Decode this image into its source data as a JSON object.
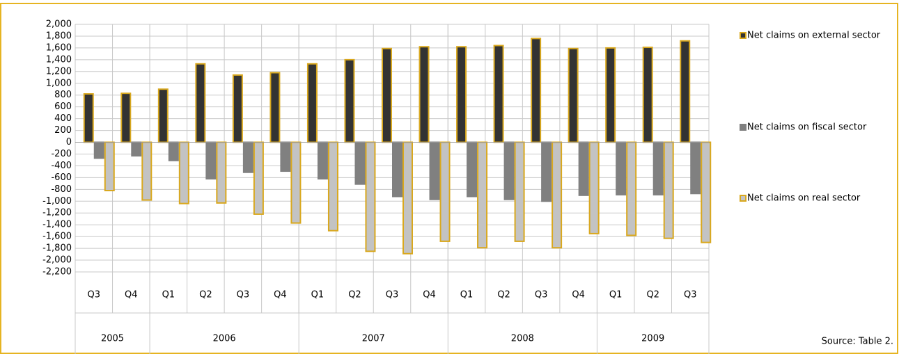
{
  "chart_data": {
    "type": "bar",
    "groups": [
      {
        "name": "2005",
        "categories": [
          "Q3",
          "Q4"
        ]
      },
      {
        "name": "2006",
        "categories": [
          "Q1",
          "Q2",
          "Q3",
          "Q4"
        ]
      },
      {
        "name": "2007",
        "categories": [
          "Q1",
          "Q2",
          "Q3",
          "Q4"
        ]
      },
      {
        "name": "2008",
        "categories": [
          "Q1",
          "Q2",
          "Q3",
          "Q4"
        ]
      },
      {
        "name": "2009",
        "categories": [
          "Q1",
          "Q2",
          "Q3"
        ]
      }
    ],
    "series": [
      {
        "name": "Net claims on external sector",
        "color": "#333333",
        "edge": "#d9a81e",
        "values": [
          820,
          830,
          900,
          1330,
          1140,
          1180,
          1330,
          1400,
          1590,
          1620,
          1620,
          1640,
          1760,
          1590,
          1600,
          1610,
          1720
        ]
      },
      {
        "name": "Net claims on fiscal sector",
        "color": "#808080",
        "edge": "#808080",
        "values": [
          -270,
          -230,
          -310,
          -620,
          -510,
          -490,
          -620,
          -710,
          -920,
          -970,
          -920,
          -970,
          -1000,
          -900,
          -890,
          -890,
          -870
        ]
      },
      {
        "name": "Net claims on real sector",
        "color": "#c3c3c3",
        "edge": "#d9a81e",
        "values": [
          -820,
          -980,
          -1040,
          -1030,
          -1220,
          -1370,
          -1500,
          -1850,
          -1890,
          -1680,
          -1790,
          -1680,
          -1790,
          -1550,
          -1580,
          -1630,
          -1700
        ]
      }
    ],
    "ylim": [
      -2200,
      2000
    ],
    "yticks": [
      {
        "value": 2000,
        "label": "2,000"
      },
      {
        "value": 1800,
        "label": "1,800"
      },
      {
        "value": 1600,
        "label": "1,600"
      },
      {
        "value": 1400,
        "label": "1,400"
      },
      {
        "value": 1200,
        "label": "1,200"
      },
      {
        "value": 1000,
        "label": "1,000"
      },
      800,
      600,
      400,
      200,
      0,
      -200,
      -400,
      -600,
      -800,
      {
        "value": -1000,
        "label": "-1,000"
      },
      {
        "value": -1200,
        "label": "-1,200"
      },
      {
        "value": -1400,
        "label": "-1,400"
      },
      {
        "value": -1600,
        "label": "-1,600"
      },
      {
        "value": -1800,
        "label": "-1,800"
      },
      {
        "value": -2000,
        "label": "-2,000"
      },
      {
        "value": -2200,
        "label": "-2,200"
      }
    ],
    "grid": true,
    "source": "Source: Table 2."
  }
}
